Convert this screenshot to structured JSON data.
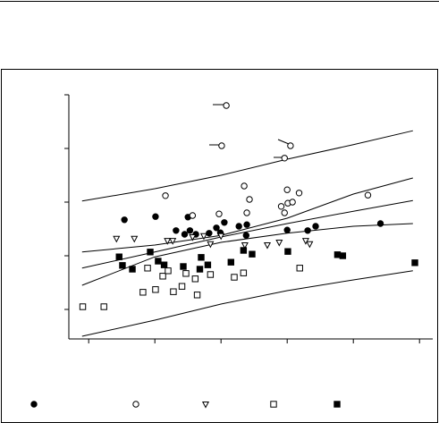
{
  "chart_data": {
    "type": "scatter",
    "xlim": [
      -0.3,
      5.2
    ],
    "ylim": [
      -0.55,
      4
    ],
    "xticks": [
      0,
      1,
      2,
      3,
      4,
      5
    ],
    "yticks": [
      0,
      1,
      2,
      3,
      4
    ],
    "series": [
      {
        "marker": "circle-filled",
        "color": "#000000",
        "x": [
          0.54,
          1.01,
          1.32,
          1.45,
          1.5,
          1.53,
          1.62,
          1.82,
          1.93,
          1.99,
          2.05,
          2.27,
          2.39,
          2.38,
          3.0,
          3.31,
          3.43,
          4.41
        ],
        "values": [
          1.67,
          1.73,
          1.47,
          1.4,
          1.72,
          1.47,
          1.4,
          1.42,
          1.52,
          1.43,
          1.62,
          1.55,
          1.58,
          1.38,
          1.48,
          1.47,
          1.55,
          1.6
        ]
      },
      {
        "marker": "circle-open",
        "color": "#000000",
        "x": [
          2.08,
          2.01,
          3.05,
          2.96,
          1.16,
          1.57,
          1.97,
          2.35,
          2.43,
          2.39,
          3.0,
          3.18,
          3.01,
          3.08,
          2.91,
          2.96,
          4.22
        ],
        "values": [
          3.8,
          3.05,
          3.05,
          2.82,
          2.12,
          1.75,
          1.78,
          2.3,
          2.05,
          1.8,
          2.23,
          2.17,
          1.98,
          2.0,
          1.92,
          1.8,
          2.13
        ]
      },
      {
        "marker": "triangle-open",
        "color": "#000000",
        "x": [
          0.42,
          0.69,
          1.19,
          1.27,
          1.57,
          1.74,
          1.84,
          2.0,
          2.36,
          2.7,
          2.88,
          3.28,
          3.34
        ],
        "values": [
          1.32,
          1.32,
          1.28,
          1.28,
          1.35,
          1.37,
          1.22,
          1.37,
          1.2,
          1.2,
          1.25,
          1.28,
          1.22
        ]
      },
      {
        "marker": "square-open",
        "color": "#000000",
        "x": [
          -0.09,
          0.23,
          1.01,
          1.12,
          1.2,
          1.41,
          1.47,
          1.61,
          1.64,
          1.84,
          2.34,
          3.19,
          0.82,
          0.89,
          1.28,
          2.2
        ],
        "values": [
          0.05,
          0.05,
          0.37,
          0.62,
          0.72,
          0.43,
          0.67,
          0.57,
          0.27,
          0.65,
          0.68,
          0.77,
          0.32,
          0.77,
          0.33,
          0.6
        ]
      },
      {
        "marker": "square-filled",
        "color": "#000000",
        "x": [
          0.46,
          0.51,
          0.66,
          0.93,
          1.05,
          1.14,
          1.43,
          1.68,
          1.7,
          1.8,
          2.15,
          2.34,
          2.47,
          3.01,
          3.76,
          3.84,
          4.93
        ],
        "values": [
          0.98,
          0.82,
          0.75,
          1.07,
          0.9,
          0.83,
          0.8,
          0.75,
          0.97,
          0.83,
          0.88,
          1.1,
          1.03,
          1.08,
          1.02,
          1.0,
          0.87
        ]
      }
    ],
    "curves": [
      {
        "color": "#000000",
        "x": [
          -0.1,
          1,
          2,
          3,
          4,
          4.9
        ],
        "values": [
          2.02,
          2.25,
          2.5,
          2.8,
          3.07,
          3.33
        ]
      },
      {
        "color": "#000000",
        "x": [
          -0.1,
          1,
          2,
          3,
          4,
          4.9
        ],
        "values": [
          1.07,
          1.2,
          1.38,
          1.7,
          2.15,
          2.45
        ]
      },
      {
        "color": "#000000",
        "x": [
          -0.1,
          1,
          2,
          3,
          4,
          4.9
        ],
        "values": [
          0.77,
          1.07,
          1.35,
          1.6,
          1.83,
          2.03
        ]
      },
      {
        "color": "#000000",
        "x": [
          -0.1,
          1,
          2,
          3,
          4,
          4.9
        ],
        "values": [
          0.45,
          0.98,
          1.25,
          1.42,
          1.55,
          1.6
        ]
      },
      {
        "color": "#000000",
        "x": [
          -0.1,
          1,
          2,
          3,
          4,
          4.9
        ],
        "values": [
          -0.5,
          -0.2,
          0.1,
          0.35,
          0.55,
          0.72
        ]
      }
    ]
  }
}
